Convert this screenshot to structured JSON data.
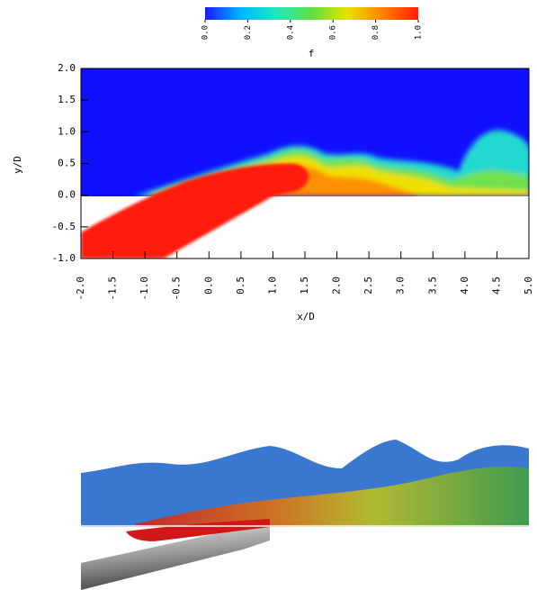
{
  "chart_data": {
    "type": "contour",
    "x_label": "x/D",
    "y_label": "y/D",
    "xlim": [
      -2,
      5
    ],
    "ylim": [
      -1,
      2
    ],
    "xticks": [
      {
        "value": -2,
        "label": "-2.0"
      },
      -1.5,
      {
        "value": -1,
        "label": "-1.0"
      },
      -0.5,
      {
        "value": 0,
        "label": "0.0"
      },
      0.5,
      {
        "value": 1,
        "label": "1.0"
      },
      1.5,
      {
        "value": 2,
        "label": "2.0"
      },
      2.5,
      {
        "value": 3,
        "label": "3.0"
      },
      3.5,
      {
        "value": 4,
        "label": "4.0"
      },
      4.5,
      {
        "value": 5,
        "label": "5.0"
      }
    ],
    "yticks": [
      {
        "value": 2,
        "label": "2.0"
      },
      1.5,
      {
        "value": 1,
        "label": "1.0"
      },
      0.5,
      {
        "value": 0,
        "label": "0.0"
      },
      -0.5,
      {
        "value": -1,
        "label": "-1.0"
      }
    ],
    "colorbar": {
      "label": "f",
      "lim": [
        0,
        1
      ],
      "ticks": [
        {
          "value": 0,
          "label": "0.0"
        },
        0.2,
        0.4,
        0.6,
        0.8,
        {
          "value": 1,
          "label": "1.0"
        }
      ],
      "colors": [
        "#1a1aff",
        "#00b4ff",
        "#20e8c0",
        "#60e040",
        "#e8e000",
        "#ff8000",
        "#ff2000"
      ]
    }
  }
}
